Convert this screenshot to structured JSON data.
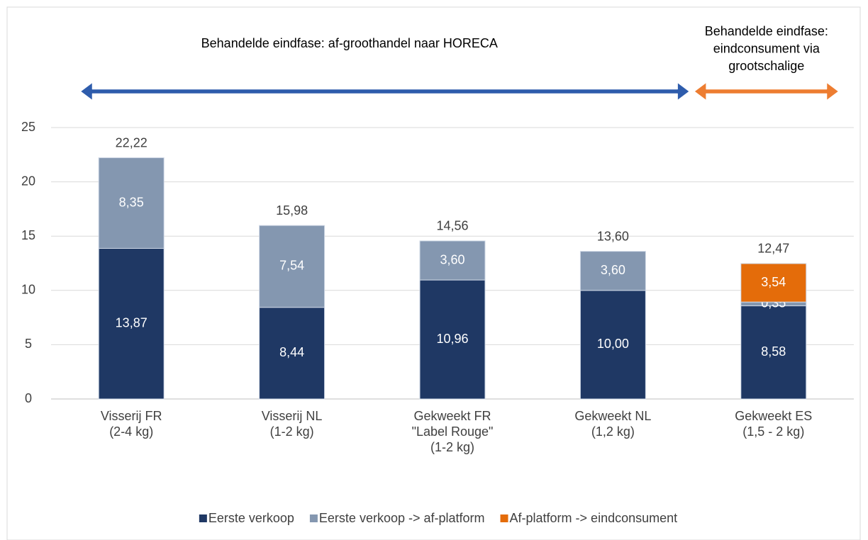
{
  "chart_data": {
    "type": "stacked_bar",
    "categories": [
      [
        "Visserij FR",
        "(2-4 kg)"
      ],
      [
        "Visserij NL",
        "(1-2 kg)"
      ],
      [
        "Gekweekt FR",
        "\"Label Rouge\"",
        "(1-2 kg)"
      ],
      [
        "Gekweekt NL",
        "(1,2 kg)"
      ],
      [
        "Gekweekt ES",
        "(1,5 - 2 kg)"
      ]
    ],
    "series": [
      {
        "name": "Eerste verkoop",
        "color": "#1f3864",
        "values": [
          13.87,
          8.44,
          10.96,
          10.0,
          8.58
        ],
        "value_labels": [
          "13,87",
          "8,44",
          "10,96",
          "10,00",
          "8,58"
        ]
      },
      {
        "name": "Eerste verkoop -> af-platform",
        "color": "#8497b0",
        "values": [
          8.35,
          7.54,
          3.6,
          3.6,
          0.35
        ],
        "value_labels": [
          "8,35",
          "7,54",
          "3,60",
          "3,60",
          "0,35"
        ]
      },
      {
        "name": "Af-platform -> eindconsument",
        "color": "#e46c0a",
        "values": [
          null,
          null,
          null,
          null,
          3.54
        ],
        "value_labels": [
          null,
          null,
          null,
          null,
          "3,54"
        ]
      }
    ],
    "totals": [
      22.22,
      15.98,
      14.56,
      13.6,
      12.47
    ],
    "total_labels": [
      "22,22",
      "15,98",
      "14,56",
      "13,60",
      "12,47"
    ],
    "ylim": [
      0,
      25
    ],
    "yticks": [
      0,
      5,
      10,
      15,
      20,
      25
    ],
    "grid": true,
    "legend": "bottom",
    "annotations": [
      {
        "lines": [
          "Behandelde eindfase: af-groothandel naar HORECA"
        ],
        "color": "#2e5cac"
      },
      {
        "lines": [
          "Behandelde eindfase:",
          "eindconsument via",
          "grootschalige"
        ],
        "color": "#ed7d31"
      }
    ]
  }
}
